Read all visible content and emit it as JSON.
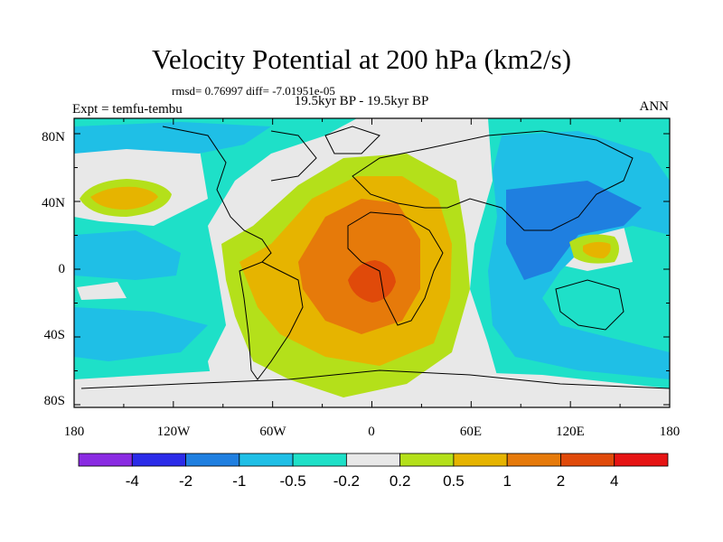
{
  "title": "Velocity Potential at 200 hPa (km2/s)",
  "stats": "rmsd= 0.76997 diff= -7.01951e-05",
  "subtitle": "19.5kyr BP - 19.5kyr BP",
  "left_label": "Expt = temfu-tembu",
  "right_label": "ANN",
  "map": {
    "lon_ticks": [
      "180",
      "120W",
      "60W",
      "0",
      "60E",
      "120E",
      "180"
    ],
    "lat_ticks": [
      "80N",
      "40N",
      "0",
      "40S",
      "80S"
    ]
  },
  "colorbar": {
    "labels": [
      "-4",
      "-2",
      "-1",
      "-0.5",
      "-0.2",
      "0.2",
      "0.5",
      "1",
      "2",
      "4"
    ],
    "colors": [
      "#8a2be2",
      "#2b2be8",
      "#1f7fe0",
      "#1fbfe6",
      "#1ee0c8",
      "#e8e8e8",
      "#b4e01a",
      "#e6b400",
      "#e67a0a",
      "#e04a0a",
      "#e61414"
    ]
  },
  "colors": {
    "ocean_bg": "#1ee0c8",
    "neutral": "#e8e8e8",
    "coast": "#000000"
  }
}
